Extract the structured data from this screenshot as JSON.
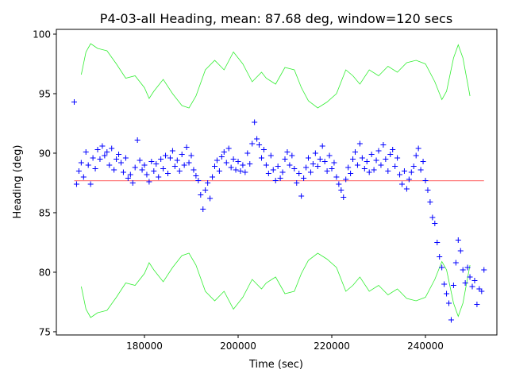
{
  "chart_data": {
    "type": "scatter",
    "title": "P4-03-all Heading, mean: 87.68 deg, window=120 secs",
    "xlabel": "Time (sec)",
    "ylabel": "Heading (deg)",
    "xlim": [
      161186,
      255254
    ],
    "ylim": [
      74.73,
      100.4
    ],
    "xticks": [
      180000,
      200000,
      220000,
      240000
    ],
    "xtick_labels": [
      "180000",
      "200000",
      "220000",
      "240000"
    ],
    "yticks": [
      75,
      80,
      85,
      90,
      95,
      100
    ],
    "ytick_labels": [
      "75",
      "80",
      "85",
      "90",
      "95",
      "100"
    ],
    "grid": false,
    "colors": {
      "points": "#0000ff",
      "band": "#33ee33",
      "mean": "#ff0000"
    },
    "mean": {
      "value": 87.68,
      "x_range": [
        165000,
        252500
      ]
    },
    "heading_series": {
      "name": "Heading",
      "marker": "+",
      "x_start": 165000,
      "x_step": 500,
      "y": [
        94.3,
        87.4,
        88.5,
        89.2,
        88.0,
        90.1,
        89.0,
        87.4,
        89.6,
        88.7,
        90.3,
        89.5,
        90.6,
        89.8,
        90.1,
        89.0,
        90.4,
        88.6,
        89.5,
        89.9,
        89.2,
        88.4,
        89.6,
        87.9,
        88.2,
        87.5,
        88.8,
        91.1,
        89.4,
        88.6,
        89.0,
        88.2,
        87.6,
        89.3,
        88.5,
        89.1,
        88.0,
        89.5,
        88.7,
        89.8,
        88.3,
        89.6,
        90.2,
        88.9,
        89.4,
        88.5,
        89.9,
        89.0,
        90.5,
        89.2,
        89.8,
        88.6,
        88.1,
        87.7,
        86.5,
        85.3,
        86.9,
        87.5,
        86.2,
        88.0,
        88.9,
        89.4,
        88.5,
        89.7,
        90.1,
        89.2,
        90.4,
        88.8,
        89.5,
        88.6,
        89.3,
        88.5,
        89.0,
        88.4,
        90.0,
        89.1,
        90.8,
        92.6,
        91.2,
        90.7,
        89.6,
        90.3,
        89.0,
        88.3,
        89.8,
        88.6,
        87.7,
        88.9,
        87.9,
        88.4,
        89.5,
        90.1,
        89.0,
        89.8,
        88.7,
        87.5,
        88.3,
        86.4,
        87.9,
        88.8,
        89.6,
        88.4,
        89.1,
        90.0,
        88.9,
        89.5,
        90.6,
        89.3,
        88.5,
        89.8,
        88.7,
        89.2,
        88.0,
        87.4,
        86.9,
        86.3,
        87.8,
        88.8,
        88.3,
        89.5,
        90.1,
        89.0,
        90.8,
        89.6,
        88.7,
        89.3,
        88.4,
        89.9,
        88.6,
        89.4,
        90.2,
        89.0,
        90.7,
        89.5,
        88.5,
        89.9,
        90.3,
        88.9,
        89.6,
        88.2,
        87.4,
        88.5,
        87.0,
        87.8,
        88.4,
        88.9,
        89.8,
        90.4,
        88.6,
        89.3,
        87.7,
        86.9,
        85.9,
        84.6,
        84.1,
        82.5,
        81.3,
        80.4,
        79.0,
        78.2,
        77.4,
        76.0,
        78.9,
        80.8,
        82.7,
        81.8,
        80.2,
        79.1,
        80.4,
        79.6,
        78.8,
        79.3,
        77.3,
        78.6,
        78.4,
        80.2
      ]
    },
    "band": {
      "name": "mean ± window band",
      "x": [
        166500,
        167500,
        168500,
        170000,
        172000,
        174000,
        176000,
        178000,
        180000,
        181000,
        182000,
        184000,
        186000,
        188000,
        189500,
        191000,
        193000,
        195000,
        197000,
        199000,
        201000,
        203000,
        205000,
        206000,
        208000,
        210000,
        212000,
        213500,
        215000,
        217000,
        219000,
        221000,
        223000,
        224500,
        226000,
        228000,
        230000,
        232000,
        234000,
        236000,
        238000,
        240000,
        242000,
        243500,
        244500,
        246000,
        247000,
        248000,
        249500
      ],
      "upper": [
        96.6,
        98.5,
        99.2,
        98.8,
        98.6,
        97.5,
        96.3,
        96.5,
        95.5,
        94.6,
        95.2,
        96.2,
        95.0,
        94.0,
        93.8,
        94.8,
        97.0,
        97.8,
        97.0,
        98.5,
        97.5,
        96.0,
        96.8,
        96.3,
        95.8,
        97.2,
        97.0,
        95.5,
        94.4,
        93.8,
        94.3,
        95.0,
        97.0,
        96.5,
        95.8,
        97.0,
        96.5,
        97.3,
        96.8,
        97.6,
        97.8,
        97.5,
        96.0,
        94.5,
        95.2,
        98.0,
        99.1,
        98.0,
        94.8
      ],
      "lower": [
        78.8,
        76.9,
        76.2,
        76.6,
        76.8,
        77.9,
        79.1,
        78.9,
        79.9,
        80.8,
        80.2,
        79.2,
        80.4,
        81.4,
        81.6,
        80.6,
        78.4,
        77.6,
        78.4,
        76.9,
        77.9,
        79.4,
        78.6,
        79.1,
        79.6,
        78.2,
        78.4,
        79.9,
        81.0,
        81.6,
        81.1,
        80.4,
        78.4,
        78.9,
        79.6,
        78.4,
        78.9,
        78.1,
        78.6,
        77.8,
        77.6,
        77.9,
        79.4,
        80.9,
        80.2,
        77.4,
        76.3,
        77.4,
        80.6
      ]
    }
  }
}
